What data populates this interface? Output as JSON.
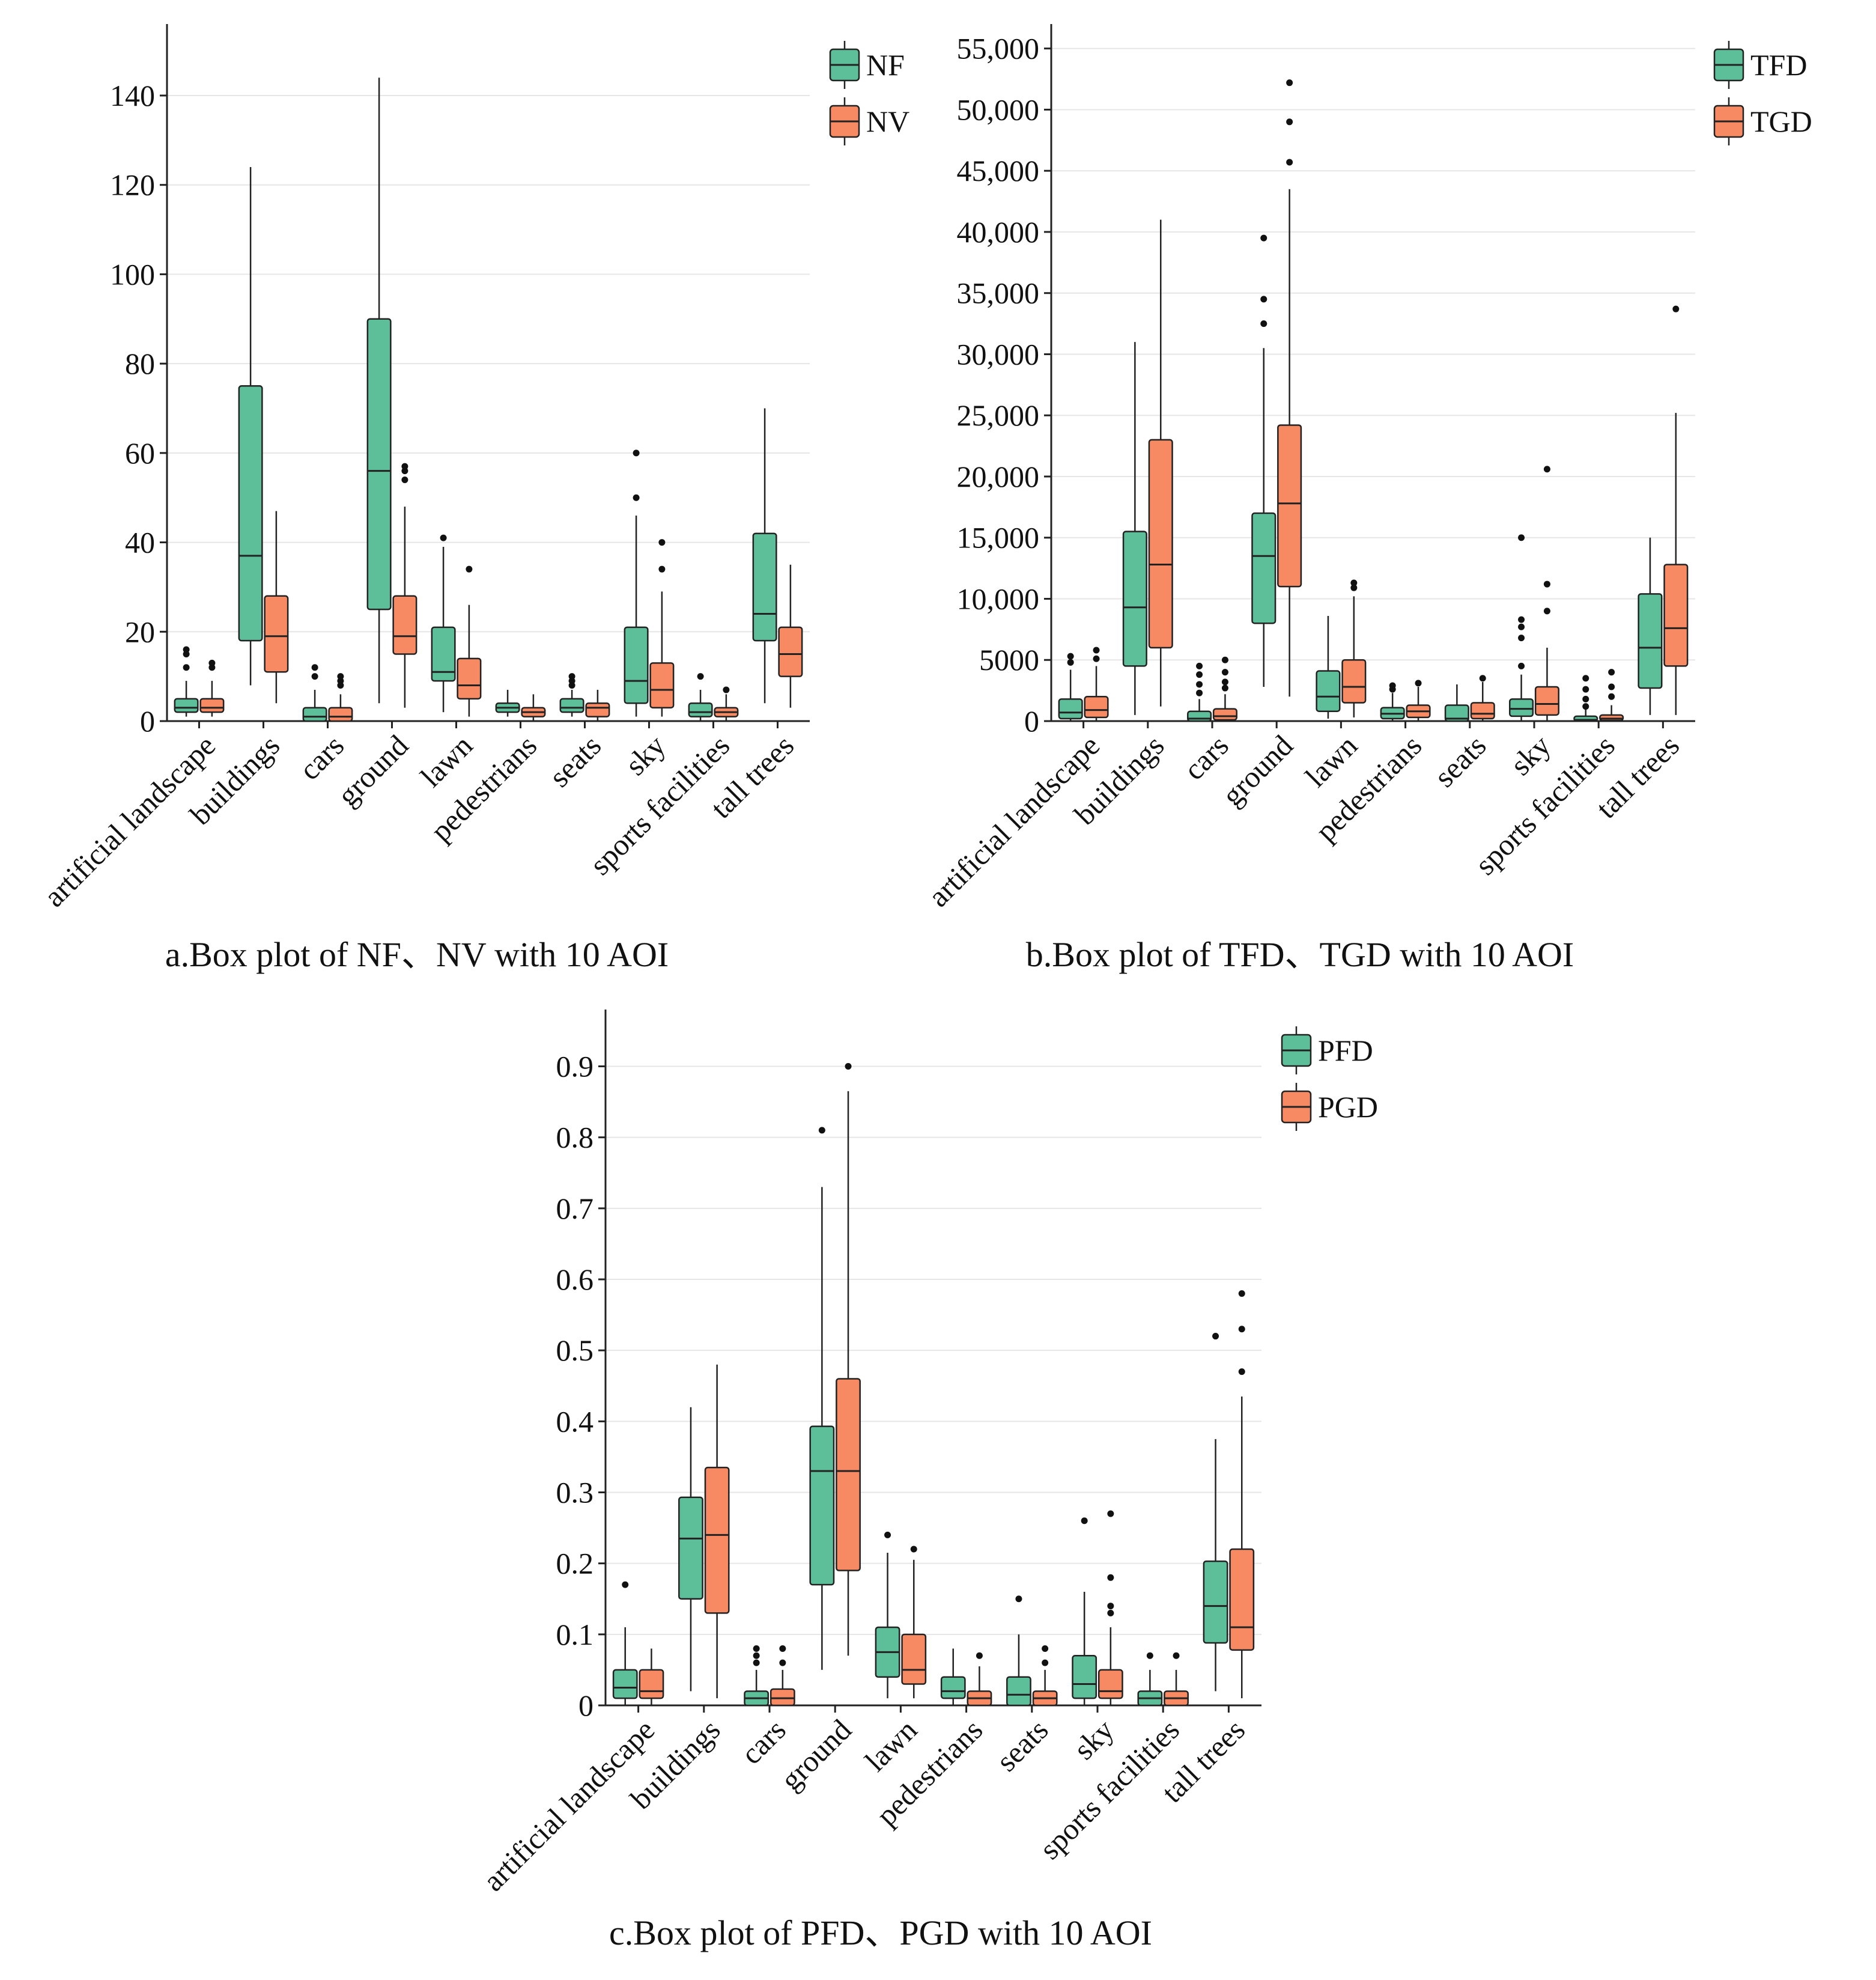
{
  "colors": {
    "series1": "#5dbf9a",
    "series2": "#f78a63"
  },
  "chart_data": [
    {
      "type": "box",
      "caption": "a.Box plot of NF、NV with 10 AOI",
      "ylim": [
        0,
        156
      ],
      "yticks": [
        0,
        20,
        40,
        60,
        80,
        100,
        120,
        140
      ],
      "ytick_labels": [
        "0",
        "20",
        "40",
        "60",
        "80",
        "100",
        "120",
        "140"
      ],
      "grid": true,
      "legend": "top-right",
      "categories": [
        "artificial landscape",
        "buildings",
        "cars",
        "ground",
        "lawn",
        "pedestrians",
        "seats",
        "sky",
        "sports facilities",
        "tall trees"
      ],
      "series": [
        {
          "name": "NF",
          "boxes": [
            {
              "min": 1,
              "q1": 2,
              "median": 3,
              "q3": 5,
              "max": 9,
              "outliers": [
                12,
                15,
                16
              ]
            },
            {
              "min": 8,
              "q1": 18,
              "median": 37,
              "q3": 75,
              "max": 124,
              "outliers": []
            },
            {
              "min": 0,
              "q1": 0,
              "median": 1,
              "q3": 3,
              "max": 7,
              "outliers": [
                10,
                12
              ]
            },
            {
              "min": 4,
              "q1": 25,
              "median": 56,
              "q3": 90,
              "max": 144,
              "outliers": []
            },
            {
              "min": 2,
              "q1": 9,
              "median": 11,
              "q3": 21,
              "max": 39,
              "outliers": [
                41
              ]
            },
            {
              "min": 1,
              "q1": 2,
              "median": 3,
              "q3": 4,
              "max": 7,
              "outliers": []
            },
            {
              "min": 1,
              "q1": 2,
              "median": 3,
              "q3": 5,
              "max": 7,
              "outliers": [
                8,
                9,
                10
              ]
            },
            {
              "min": 1,
              "q1": 4,
              "median": 9,
              "q3": 21,
              "max": 46,
              "outliers": [
                50,
                60
              ]
            },
            {
              "min": 0,
              "q1": 1,
              "median": 2,
              "q3": 4,
              "max": 7,
              "outliers": [
                10
              ]
            },
            {
              "min": 4,
              "q1": 18,
              "median": 24,
              "q3": 42,
              "max": 70,
              "outliers": []
            }
          ]
        },
        {
          "name": "NV",
          "boxes": [
            {
              "min": 1,
              "q1": 2,
              "median": 3,
              "q3": 5,
              "max": 9,
              "outliers": [
                12,
                13
              ]
            },
            {
              "min": 4,
              "q1": 11,
              "median": 19,
              "q3": 28,
              "max": 47,
              "outliers": []
            },
            {
              "min": 0,
              "q1": 0,
              "median": 1,
              "q3": 3,
              "max": 6,
              "outliers": [
                8,
                9,
                10
              ]
            },
            {
              "min": 3,
              "q1": 15,
              "median": 19,
              "q3": 28,
              "max": 48,
              "outliers": [
                54,
                56,
                57
              ]
            },
            {
              "min": 1,
              "q1": 5,
              "median": 8,
              "q3": 14,
              "max": 26,
              "outliers": [
                34
              ]
            },
            {
              "min": 0,
              "q1": 1,
              "median": 2,
              "q3": 3,
              "max": 6,
              "outliers": []
            },
            {
              "min": 0,
              "q1": 1,
              "median": 3,
              "q3": 4,
              "max": 7,
              "outliers": []
            },
            {
              "min": 1,
              "q1": 3,
              "median": 7,
              "q3": 13,
              "max": 29,
              "outliers": [
                34,
                40
              ]
            },
            {
              "min": 0,
              "q1": 1,
              "median": 2,
              "q3": 3,
              "max": 6,
              "outliers": [
                7
              ]
            },
            {
              "min": 3,
              "q1": 10,
              "median": 15,
              "q3": 21,
              "max": 35,
              "outliers": []
            }
          ]
        }
      ]
    },
    {
      "type": "box",
      "caption": "b.Box plot of TFD、TGD with 10 AOI",
      "ylim": [
        0,
        57000
      ],
      "yticks": [
        0,
        5000,
        10000,
        15000,
        20000,
        25000,
        30000,
        35000,
        40000,
        45000,
        50000,
        55000
      ],
      "ytick_labels": [
        "0",
        "5000",
        "10,000",
        "15,000",
        "20,000",
        "25,000",
        "30,000",
        "35,000",
        "40,000",
        "45,000",
        "50,000",
        "55,000"
      ],
      "grid": true,
      "legend": "top-right",
      "categories": [
        "artificial landscape",
        "buildings",
        "cars",
        "ground",
        "lawn",
        "pedestrians",
        "seats",
        "sky",
        "sports facilities",
        "tall trees"
      ],
      "series": [
        {
          "name": "TFD",
          "boxes": [
            {
              "min": 0,
              "q1": 200,
              "median": 700,
              "q3": 1800,
              "max": 4200,
              "outliers": [
                4800,
                5300
              ]
            },
            {
              "min": 500,
              "q1": 4500,
              "median": 9300,
              "q3": 15500,
              "max": 31000,
              "outliers": []
            },
            {
              "min": 0,
              "q1": 0,
              "median": 200,
              "q3": 800,
              "max": 1800,
              "outliers": [
                2300,
                3000,
                3800,
                4500
              ]
            },
            {
              "min": 2800,
              "q1": 8000,
              "median": 13500,
              "q3": 17000,
              "max": 30500,
              "outliers": [
                32500,
                34500,
                39500
              ]
            },
            {
              "min": 200,
              "q1": 800,
              "median": 2000,
              "q3": 4100,
              "max": 8600,
              "outliers": []
            },
            {
              "min": 0,
              "q1": 200,
              "median": 600,
              "q3": 1100,
              "max": 2300,
              "outliers": [
                2600,
                2900
              ]
            },
            {
              "min": 0,
              "q1": 0,
              "median": 200,
              "q3": 1300,
              "max": 3000,
              "outliers": []
            },
            {
              "min": 0,
              "q1": 400,
              "median": 1000,
              "q3": 1800,
              "max": 3800,
              "outliers": [
                4500,
                6800,
                7700,
                8300,
                15000
              ]
            },
            {
              "min": 0,
              "q1": 0,
              "median": 100,
              "q3": 400,
              "max": 1000,
              "outliers": [
                1200,
                1800,
                2600,
                3500
              ]
            },
            {
              "min": 500,
              "q1": 2700,
              "median": 6000,
              "q3": 10400,
              "max": 15000,
              "outliers": []
            }
          ]
        },
        {
          "name": "TGD",
          "boxes": [
            {
              "min": 0,
              "q1": 300,
              "median": 900,
              "q3": 2000,
              "max": 4500,
              "outliers": [
                5100,
                5800
              ]
            },
            {
              "min": 1200,
              "q1": 6000,
              "median": 12800,
              "q3": 23000,
              "max": 41000,
              "outliers": []
            },
            {
              "min": 0,
              "q1": 100,
              "median": 400,
              "q3": 1000,
              "max": 2200,
              "outliers": [
                2700,
                3200,
                4000,
                5000
              ]
            },
            {
              "min": 2000,
              "q1": 11000,
              "median": 17800,
              "q3": 24200,
              "max": 43500,
              "outliers": [
                45700,
                49000,
                52200
              ]
            },
            {
              "min": 300,
              "q1": 1500,
              "median": 2800,
              "q3": 5000,
              "max": 10200,
              "outliers": [
                10900,
                11300
              ]
            },
            {
              "min": 0,
              "q1": 300,
              "median": 800,
              "q3": 1300,
              "max": 2800,
              "outliers": [
                3100
              ]
            },
            {
              "min": 0,
              "q1": 200,
              "median": 600,
              "q3": 1500,
              "max": 3200,
              "outliers": [
                3500
              ]
            },
            {
              "min": 0,
              "q1": 500,
              "median": 1400,
              "q3": 2800,
              "max": 6000,
              "outliers": [
                9000,
                11200,
                20600
              ]
            },
            {
              "min": 0,
              "q1": 50,
              "median": 200,
              "q3": 500,
              "max": 1300,
              "outliers": [
                2000,
                2800,
                4000
              ]
            },
            {
              "min": 500,
              "q1": 4500,
              "median": 7600,
              "q3": 12800,
              "max": 25200,
              "outliers": [
                33700
              ]
            }
          ]
        }
      ]
    },
    {
      "type": "box",
      "caption": "c.Box plot of PFD、PGD with 10 AOI",
      "ylim": [
        0,
        0.98
      ],
      "yticks": [
        0,
        0.1,
        0.2,
        0.3,
        0.4,
        0.5,
        0.6,
        0.7,
        0.8,
        0.9
      ],
      "ytick_labels": [
        "0",
        "0.1",
        "0.2",
        "0.3",
        "0.4",
        "0.5",
        "0.6",
        "0.7",
        "0.8",
        "0.9"
      ],
      "grid": true,
      "legend": "top-right",
      "categories": [
        "artificial landscape",
        "buildings",
        "cars",
        "ground",
        "lawn",
        "pedestrians",
        "seats",
        "sky",
        "sports facilities",
        "tall trees"
      ],
      "series": [
        {
          "name": "PFD",
          "boxes": [
            {
              "min": 0,
              "q1": 0.01,
              "median": 0.025,
              "q3": 0.05,
              "max": 0.11,
              "outliers": [
                0.17
              ]
            },
            {
              "min": 0.02,
              "q1": 0.15,
              "median": 0.235,
              "q3": 0.293,
              "max": 0.42,
              "outliers": []
            },
            {
              "min": 0,
              "q1": 0,
              "median": 0.01,
              "q3": 0.02,
              "max": 0.05,
              "outliers": [
                0.06,
                0.07,
                0.08
              ]
            },
            {
              "min": 0.05,
              "q1": 0.17,
              "median": 0.33,
              "q3": 0.393,
              "max": 0.73,
              "outliers": [
                0.81
              ]
            },
            {
              "min": 0.01,
              "q1": 0.04,
              "median": 0.075,
              "q3": 0.11,
              "max": 0.215,
              "outliers": [
                0.24
              ]
            },
            {
              "min": 0,
              "q1": 0.01,
              "median": 0.02,
              "q3": 0.04,
              "max": 0.08,
              "outliers": []
            },
            {
              "min": 0,
              "q1": 0,
              "median": 0.015,
              "q3": 0.04,
              "max": 0.1,
              "outliers": [
                0.15
              ]
            },
            {
              "min": 0,
              "q1": 0.01,
              "median": 0.03,
              "q3": 0.07,
              "max": 0.16,
              "outliers": [
                0.26
              ]
            },
            {
              "min": 0,
              "q1": 0,
              "median": 0.01,
              "q3": 0.02,
              "max": 0.05,
              "outliers": [
                0.07
              ]
            },
            {
              "min": 0.02,
              "q1": 0.088,
              "median": 0.14,
              "q3": 0.203,
              "max": 0.375,
              "outliers": [
                0.52
              ]
            }
          ]
        },
        {
          "name": "PGD",
          "boxes": [
            {
              "min": 0,
              "q1": 0.01,
              "median": 0.02,
              "q3": 0.05,
              "max": 0.08,
              "outliers": []
            },
            {
              "min": 0.01,
              "q1": 0.13,
              "median": 0.24,
              "q3": 0.335,
              "max": 0.48,
              "outliers": []
            },
            {
              "min": 0,
              "q1": 0,
              "median": 0.01,
              "q3": 0.023,
              "max": 0.05,
              "outliers": [
                0.06,
                0.08
              ]
            },
            {
              "min": 0.07,
              "q1": 0.19,
              "median": 0.33,
              "q3": 0.46,
              "max": 0.865,
              "outliers": [
                0.9
              ]
            },
            {
              "min": 0.01,
              "q1": 0.03,
              "median": 0.05,
              "q3": 0.1,
              "max": 0.205,
              "outliers": [
                0.22
              ]
            },
            {
              "min": 0,
              "q1": 0,
              "median": 0.01,
              "q3": 0.02,
              "max": 0.055,
              "outliers": [
                0.07
              ]
            },
            {
              "min": 0,
              "q1": 0,
              "median": 0.01,
              "q3": 0.02,
              "max": 0.05,
              "outliers": [
                0.06,
                0.08
              ]
            },
            {
              "min": 0,
              "q1": 0.01,
              "median": 0.02,
              "q3": 0.05,
              "max": 0.11,
              "outliers": [
                0.13,
                0.14,
                0.18,
                0.27
              ]
            },
            {
              "min": 0,
              "q1": 0,
              "median": 0.01,
              "q3": 0.02,
              "max": 0.05,
              "outliers": [
                0.07
              ]
            },
            {
              "min": 0.01,
              "q1": 0.078,
              "median": 0.11,
              "q3": 0.22,
              "max": 0.435,
              "outliers": [
                0.47,
                0.53,
                0.58
              ]
            }
          ]
        }
      ]
    }
  ]
}
